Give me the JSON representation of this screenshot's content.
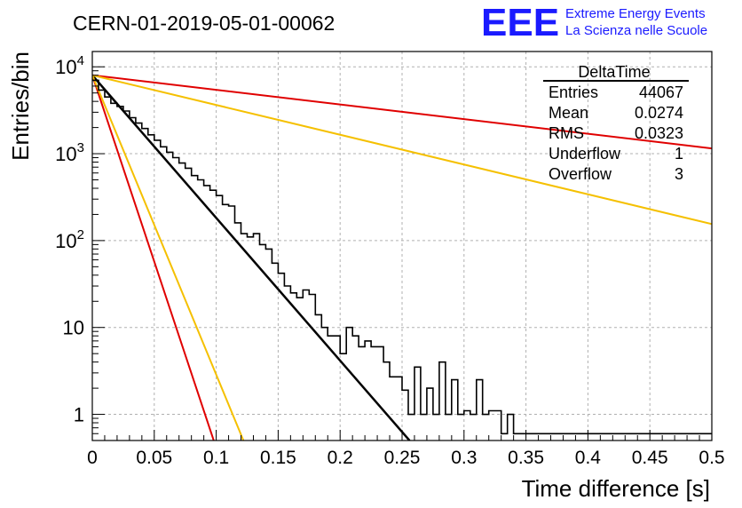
{
  "header": {
    "run_title": "CERN-01-2019-05-01-00062",
    "logo_text": "EEE",
    "logo_line1": "Extreme Energy Events",
    "logo_line2": "La Scienza nelle Scuole",
    "logo_color": "#1a1aff"
  },
  "stats_box": {
    "title": "DeltaTime",
    "rows": [
      {
        "label": "Entries",
        "value": "44067"
      },
      {
        "label": "Mean",
        "value": "0.0274"
      },
      {
        "label": "RMS",
        "value": "0.0323"
      },
      {
        "label": "Underflow",
        "value": "1"
      },
      {
        "label": "Overflow",
        "value": "3"
      }
    ]
  },
  "chart_data": {
    "type": "line",
    "xlabel": "Time difference [s]",
    "ylabel": "Entries/bin",
    "xlim": [
      0,
      0.5
    ],
    "ylim": [
      0.5,
      15000
    ],
    "y_scale": "log",
    "grid": true,
    "x_ticks": [
      0,
      0.05,
      0.1,
      0.15,
      0.2,
      0.25,
      0.3,
      0.35,
      0.4,
      0.45,
      0.5
    ],
    "x_tick_labels": [
      "0",
      "0.05",
      "0.1",
      "0.15",
      "0.2",
      "0.25",
      "0.3",
      "0.35",
      "0.4",
      "0.45",
      "0.5"
    ],
    "y_ticks": [
      1,
      10,
      100,
      1000,
      10000
    ],
    "y_tick_labels": [
      "1",
      "10",
      "10^2",
      "10^3",
      "10^4"
    ],
    "histogram": {
      "bin_width": 0.005,
      "color": "#000000",
      "values": [
        7000,
        5400,
        4500,
        3800,
        3500,
        3100,
        2600,
        2250,
        1950,
        1650,
        1430,
        1200,
        1040,
        900,
        780,
        680,
        560,
        500,
        430,
        380,
        330,
        260,
        250,
        160,
        120,
        110,
        120,
        90,
        80,
        55,
        42,
        30,
        25,
        22,
        27,
        24,
        14,
        10,
        8,
        8,
        5,
        10,
        8,
        6,
        7,
        6,
        6,
        4,
        2.7,
        2.7,
        1.9,
        1,
        3.5,
        1,
        2,
        1,
        4,
        1,
        2.5,
        1,
        1.1,
        1,
        2.5,
        1,
        1.1,
        1.1,
        0.6,
        1,
        0.6,
        0.6,
        0.6,
        0.6,
        0.6,
        0.6,
        0.6,
        0.6,
        0.6,
        0.6,
        0.6,
        0.6,
        0.6,
        0.6,
        0.6,
        0.6,
        0.6,
        0.6,
        0.6,
        0.6,
        0.6,
        0.6,
        0.6,
        0.6,
        0.6,
        0.6,
        0.6,
        0.6,
        0.6,
        0.6,
        0.6,
        0.6
      ]
    },
    "fit_lines": [
      {
        "color": "#000000",
        "points": [
          [
            0,
            8000
          ],
          [
            0.256,
            0.5
          ]
        ]
      },
      {
        "color": "#e00000",
        "points": [
          [
            0,
            8000
          ],
          [
            0.098,
            0.5
          ]
        ]
      },
      {
        "color": "#f5c000",
        "points": [
          [
            0,
            8000
          ],
          [
            0.122,
            0.5
          ]
        ]
      },
      {
        "color": "#e00000",
        "points": [
          [
            0,
            8000
          ],
          [
            0.5,
            1150
          ]
        ]
      },
      {
        "color": "#f5c000",
        "points": [
          [
            0,
            8000
          ],
          [
            0.5,
            155
          ]
        ]
      }
    ]
  }
}
